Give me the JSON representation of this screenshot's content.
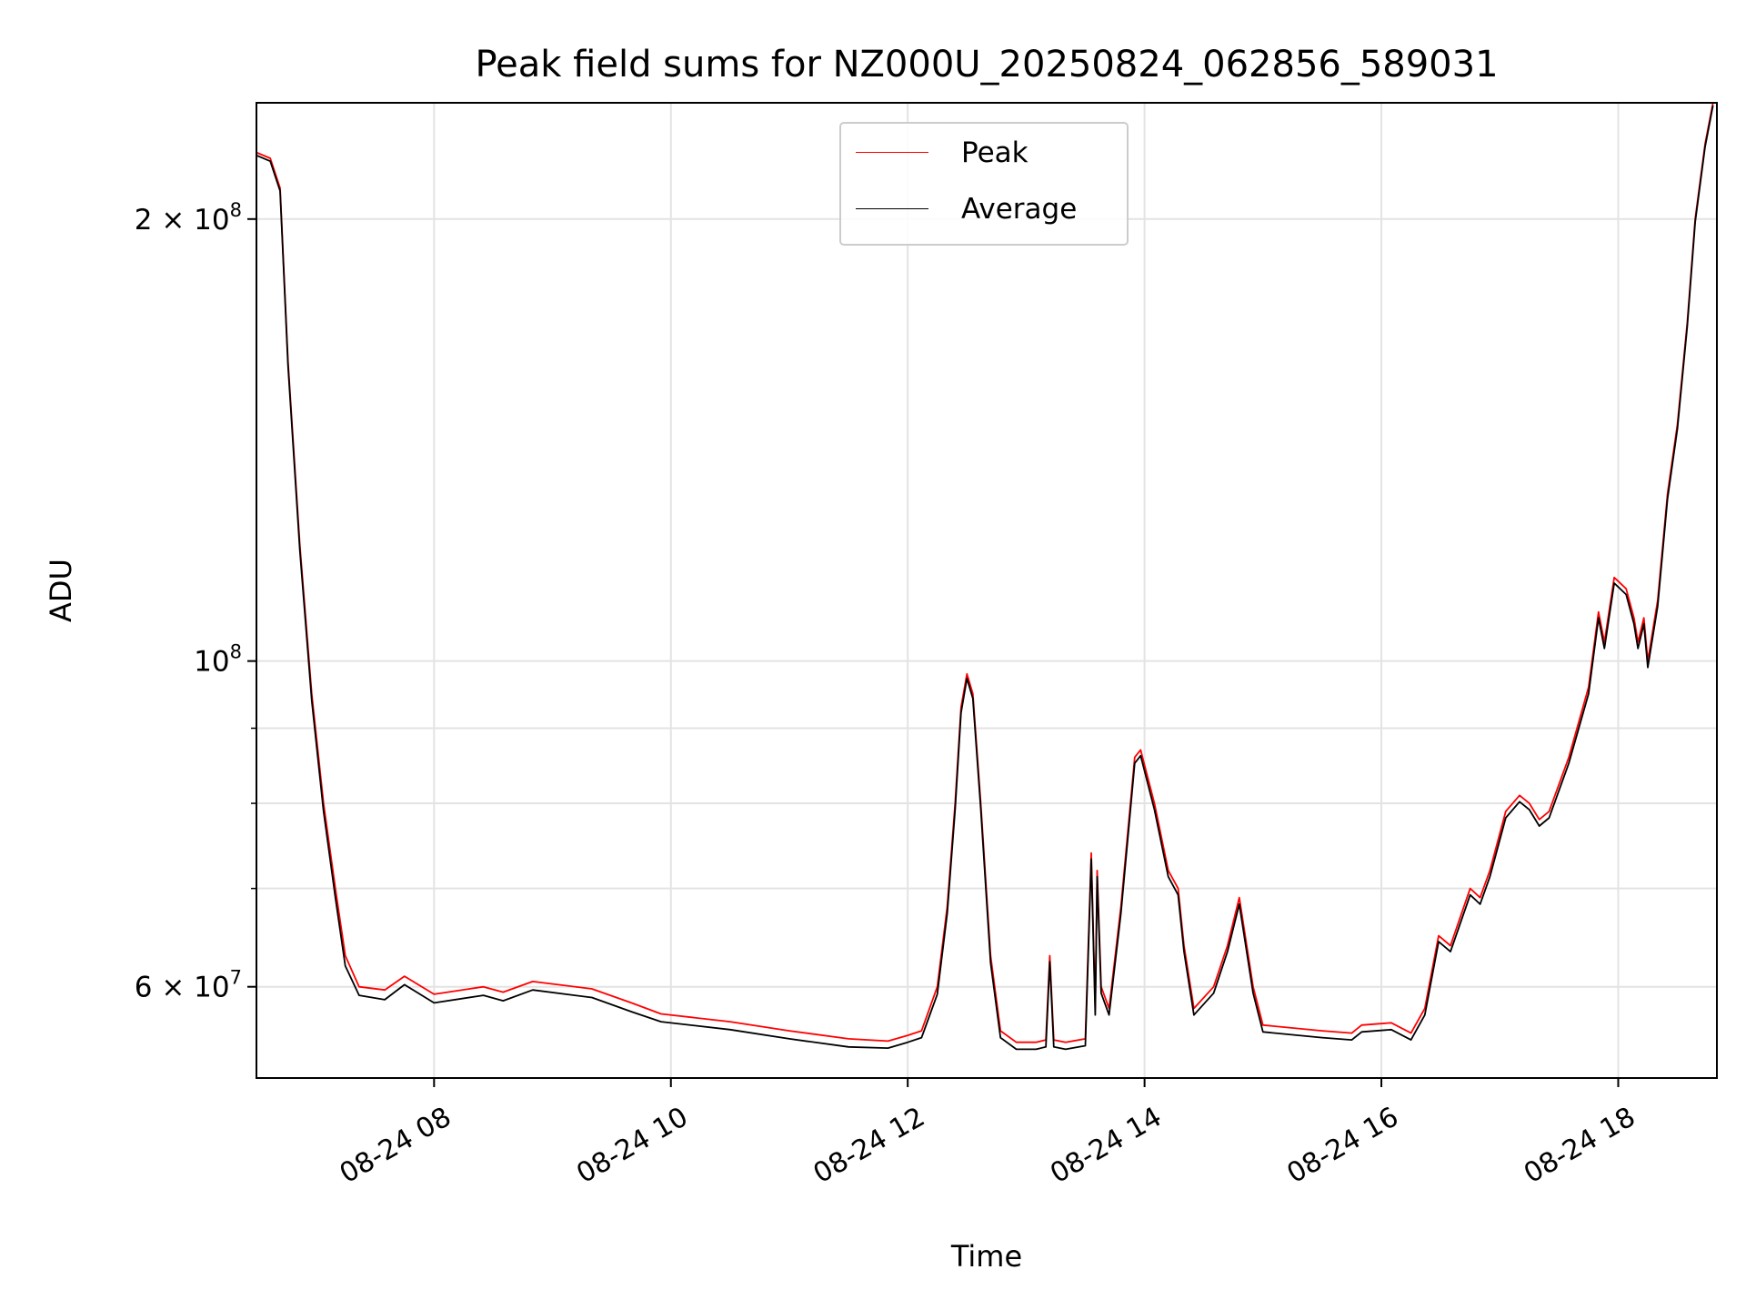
{
  "chart_data": {
    "type": "line",
    "title": "Peak field sums for NZ000U_20250824_062856_589031",
    "xlabel": "Time",
    "ylabel": "ADU",
    "yscale": "log",
    "ylim": [
      52000000,
      240000000
    ],
    "xlim": [
      "2025-08-24 06:30",
      "2025-08-24 18:50"
    ],
    "x_tick_labels": [
      "08-24 08",
      "08-24 10",
      "08-24 12",
      "08-24 14",
      "08-24 16",
      "08-24 18"
    ],
    "y_tick_labels": [
      {
        "value": 60000000,
        "mantissa": "6",
        "exponent": "7"
      },
      {
        "value": 100000000,
        "mantissa": "",
        "exponent": "8"
      },
      {
        "value": 200000000,
        "mantissa": "2",
        "exponent": "8"
      }
    ],
    "grid": true,
    "legend_position": "upper center",
    "series": [
      {
        "name": "Peak",
        "color": "#ff0000",
        "points": [
          [
            "2025-08-24 06:30",
            222000000
          ],
          [
            "2025-08-24 06:37",
            220000000
          ],
          [
            "2025-08-24 06:42",
            210000000
          ],
          [
            "2025-08-24 06:46",
            160000000
          ],
          [
            "2025-08-24 06:52",
            120000000
          ],
          [
            "2025-08-24 06:58",
            95000000
          ],
          [
            "2025-08-24 07:04",
            80000000
          ],
          [
            "2025-08-24 07:10",
            70000000
          ],
          [
            "2025-08-24 07:15",
            63000000
          ],
          [
            "2025-08-24 07:22",
            60000000
          ],
          [
            "2025-08-24 07:35",
            59700000
          ],
          [
            "2025-08-24 07:45",
            61000000
          ],
          [
            "2025-08-24 08:00",
            59300000
          ],
          [
            "2025-08-24 08:25",
            60000000
          ],
          [
            "2025-08-24 08:35",
            59500000
          ],
          [
            "2025-08-24 08:50",
            60500000
          ],
          [
            "2025-08-24 09:20",
            59800000
          ],
          [
            "2025-08-24 09:40",
            58500000
          ],
          [
            "2025-08-24 09:55",
            57500000
          ],
          [
            "2025-08-24 10:30",
            56800000
          ],
          [
            "2025-08-24 11:00",
            56000000
          ],
          [
            "2025-08-24 11:30",
            55300000
          ],
          [
            "2025-08-24 11:50",
            55100000
          ],
          [
            "2025-08-24 12:00",
            55600000
          ],
          [
            "2025-08-24 12:07",
            56000000
          ],
          [
            "2025-08-24 12:15",
            60000000
          ],
          [
            "2025-08-24 12:20",
            68000000
          ],
          [
            "2025-08-24 12:24",
            80000000
          ],
          [
            "2025-08-24 12:27",
            93000000
          ],
          [
            "2025-08-24 12:30",
            98000000
          ],
          [
            "2025-08-24 12:33",
            95000000
          ],
          [
            "2025-08-24 12:37",
            80000000
          ],
          [
            "2025-08-24 12:42",
            63000000
          ],
          [
            "2025-08-24 12:47",
            56000000
          ],
          [
            "2025-08-24 12:55",
            55000000
          ],
          [
            "2025-08-24 13:05",
            55000000
          ],
          [
            "2025-08-24 13:10",
            55200000
          ],
          [
            "2025-08-24 13:12",
            63000000
          ],
          [
            "2025-08-24 13:14",
            55200000
          ],
          [
            "2025-08-24 13:20",
            55000000
          ],
          [
            "2025-08-24 13:30",
            55300000
          ],
          [
            "2025-08-24 13:33",
            74000000
          ],
          [
            "2025-08-24 13:35",
            58000000
          ],
          [
            "2025-08-24 13:36",
            72000000
          ],
          [
            "2025-08-24 13:38",
            60000000
          ],
          [
            "2025-08-24 13:42",
            58000000
          ],
          [
            "2025-08-24 13:48",
            68000000
          ],
          [
            "2025-08-24 13:55",
            86000000
          ],
          [
            "2025-08-24 13:58",
            87000000
          ],
          [
            "2025-08-24 14:05",
            80000000
          ],
          [
            "2025-08-24 14:12",
            72000000
          ],
          [
            "2025-08-24 14:17",
            70000000
          ],
          [
            "2025-08-24 14:20",
            64000000
          ],
          [
            "2025-08-24 14:25",
            58000000
          ],
          [
            "2025-08-24 14:35",
            60000000
          ],
          [
            "2025-08-24 14:42",
            64000000
          ],
          [
            "2025-08-24 14:48",
            69000000
          ],
          [
            "2025-08-24 14:55",
            60000000
          ],
          [
            "2025-08-24 15:00",
            56500000
          ],
          [
            "2025-08-24 15:30",
            56000000
          ],
          [
            "2025-08-24 15:45",
            55800000
          ],
          [
            "2025-08-24 15:50",
            56500000
          ],
          [
            "2025-08-24 16:05",
            56700000
          ],
          [
            "2025-08-24 16:15",
            55800000
          ],
          [
            "2025-08-24 16:22",
            58000000
          ],
          [
            "2025-08-24 16:29",
            65000000
          ],
          [
            "2025-08-24 16:35",
            64000000
          ],
          [
            "2025-08-24 16:45",
            70000000
          ],
          [
            "2025-08-24 16:50",
            69000000
          ],
          [
            "2025-08-24 16:55",
            72000000
          ],
          [
            "2025-08-24 17:03",
            79000000
          ],
          [
            "2025-08-24 17:10",
            81000000
          ],
          [
            "2025-08-24 17:15",
            80000000
          ],
          [
            "2025-08-24 17:20",
            78000000
          ],
          [
            "2025-08-24 17:25",
            79000000
          ],
          [
            "2025-08-24 17:35",
            86000000
          ],
          [
            "2025-08-24 17:45",
            96000000
          ],
          [
            "2025-08-24 17:50",
            108000000
          ],
          [
            "2025-08-24 17:53",
            103000000
          ],
          [
            "2025-08-24 17:58",
            114000000
          ],
          [
            "2025-08-24 18:04",
            112000000
          ],
          [
            "2025-08-24 18:08",
            107000000
          ],
          [
            "2025-08-24 18:10",
            103000000
          ],
          [
            "2025-08-24 18:13",
            107000000
          ],
          [
            "2025-08-24 18:15",
            100000000
          ],
          [
            "2025-08-24 18:20",
            110000000
          ],
          [
            "2025-08-24 18:25",
            130000000
          ],
          [
            "2025-08-24 18:30",
            145000000
          ],
          [
            "2025-08-24 18:35",
            170000000
          ],
          [
            "2025-08-24 18:39",
            200000000
          ],
          [
            "2025-08-24 18:44",
            225000000
          ],
          [
            "2025-08-24 18:48",
            240000000
          ]
        ]
      },
      {
        "name": "Average",
        "color": "#000000",
        "points": [
          [
            "2025-08-24 06:30",
            221000000
          ],
          [
            "2025-08-24 06:37",
            219000000
          ],
          [
            "2025-08-24 06:42",
            209000000
          ],
          [
            "2025-08-24 06:46",
            159000000
          ],
          [
            "2025-08-24 06:52",
            119000000
          ],
          [
            "2025-08-24 06:58",
            94000000
          ],
          [
            "2025-08-24 07:04",
            79000000
          ],
          [
            "2025-08-24 07:10",
            69000000
          ],
          [
            "2025-08-24 07:15",
            62000000
          ],
          [
            "2025-08-24 07:22",
            59200000
          ],
          [
            "2025-08-24 07:35",
            58800000
          ],
          [
            "2025-08-24 07:45",
            60200000
          ],
          [
            "2025-08-24 08:00",
            58500000
          ],
          [
            "2025-08-24 08:25",
            59200000
          ],
          [
            "2025-08-24 08:35",
            58700000
          ],
          [
            "2025-08-24 08:50",
            59700000
          ],
          [
            "2025-08-24 09:20",
            59000000
          ],
          [
            "2025-08-24 09:40",
            57700000
          ],
          [
            "2025-08-24 09:55",
            56800000
          ],
          [
            "2025-08-24 10:30",
            56100000
          ],
          [
            "2025-08-24 11:00",
            55300000
          ],
          [
            "2025-08-24 11:30",
            54600000
          ],
          [
            "2025-08-24 11:50",
            54500000
          ],
          [
            "2025-08-24 12:00",
            55000000
          ],
          [
            "2025-08-24 12:07",
            55400000
          ],
          [
            "2025-08-24 12:15",
            59300000
          ],
          [
            "2025-08-24 12:20",
            67300000
          ],
          [
            "2025-08-24 12:24",
            79200000
          ],
          [
            "2025-08-24 12:27",
            92200000
          ],
          [
            "2025-08-24 12:30",
            97300000
          ],
          [
            "2025-08-24 12:33",
            94300000
          ],
          [
            "2025-08-24 12:37",
            79300000
          ],
          [
            "2025-08-24 12:42",
            62300000
          ],
          [
            "2025-08-24 12:47",
            55400000
          ],
          [
            "2025-08-24 12:55",
            54400000
          ],
          [
            "2025-08-24 13:05",
            54400000
          ],
          [
            "2025-08-24 13:10",
            54600000
          ],
          [
            "2025-08-24 13:12",
            62400000
          ],
          [
            "2025-08-24 13:14",
            54600000
          ],
          [
            "2025-08-24 13:20",
            54400000
          ],
          [
            "2025-08-24 13:30",
            54700000
          ],
          [
            "2025-08-24 13:33",
            73300000
          ],
          [
            "2025-08-24 13:35",
            57400000
          ],
          [
            "2025-08-24 13:36",
            71300000
          ],
          [
            "2025-08-24 13:38",
            59400000
          ],
          [
            "2025-08-24 13:42",
            57400000
          ],
          [
            "2025-08-24 13:48",
            67300000
          ],
          [
            "2025-08-24 13:55",
            85200000
          ],
          [
            "2025-08-24 13:58",
            86200000
          ],
          [
            "2025-08-24 14:05",
            79200000
          ],
          [
            "2025-08-24 14:12",
            71300000
          ],
          [
            "2025-08-24 14:17",
            69300000
          ],
          [
            "2025-08-24 14:20",
            63400000
          ],
          [
            "2025-08-24 14:25",
            57400000
          ],
          [
            "2025-08-24 14:35",
            59400000
          ],
          [
            "2025-08-24 14:42",
            63400000
          ],
          [
            "2025-08-24 14:48",
            68300000
          ],
          [
            "2025-08-24 14:55",
            59400000
          ],
          [
            "2025-08-24 15:00",
            55900000
          ],
          [
            "2025-08-24 15:30",
            55400000
          ],
          [
            "2025-08-24 15:45",
            55200000
          ],
          [
            "2025-08-24 15:50",
            55900000
          ],
          [
            "2025-08-24 16:05",
            56100000
          ],
          [
            "2025-08-24 16:15",
            55200000
          ],
          [
            "2025-08-24 16:22",
            57400000
          ],
          [
            "2025-08-24 16:29",
            64400000
          ],
          [
            "2025-08-24 16:35",
            63400000
          ],
          [
            "2025-08-24 16:45",
            69300000
          ],
          [
            "2025-08-24 16:50",
            68300000
          ],
          [
            "2025-08-24 16:55",
            71300000
          ],
          [
            "2025-08-24 17:03",
            78200000
          ],
          [
            "2025-08-24 17:10",
            80200000
          ],
          [
            "2025-08-24 17:15",
            79200000
          ],
          [
            "2025-08-24 17:20",
            77200000
          ],
          [
            "2025-08-24 17:25",
            78200000
          ],
          [
            "2025-08-24 17:35",
            85200000
          ],
          [
            "2025-08-24 17:45",
            95000000
          ],
          [
            "2025-08-24 17:50",
            107000000
          ],
          [
            "2025-08-24 17:53",
            102000000
          ],
          [
            "2025-08-24 17:58",
            113000000
          ],
          [
            "2025-08-24 18:04",
            111000000
          ],
          [
            "2025-08-24 18:08",
            106000000
          ],
          [
            "2025-08-24 18:10",
            102000000
          ],
          [
            "2025-08-24 18:13",
            106000000
          ],
          [
            "2025-08-24 18:15",
            99000000
          ],
          [
            "2025-08-24 18:20",
            109000000
          ],
          [
            "2025-08-24 18:25",
            129000000
          ],
          [
            "2025-08-24 18:30",
            144000000
          ],
          [
            "2025-08-24 18:35",
            169000000
          ],
          [
            "2025-08-24 18:39",
            199000000
          ],
          [
            "2025-08-24 18:44",
            224000000
          ],
          [
            "2025-08-24 18:48",
            239000000
          ]
        ]
      }
    ]
  }
}
